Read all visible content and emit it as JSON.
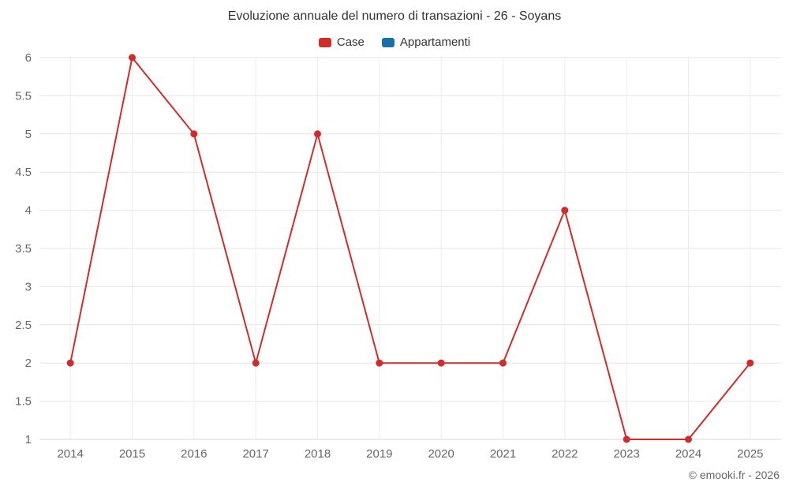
{
  "chart": {
    "title": "Evoluzione annuale del numero di transazioni - 26 - Soyans",
    "credit": "© emooki.fr - 2026"
  },
  "chart_data": {
    "type": "line",
    "title": "Evoluzione annuale del numero di transazioni - 26 - Soyans",
    "categories": [
      "2014",
      "2015",
      "2016",
      "2017",
      "2018",
      "2019",
      "2020",
      "2021",
      "2022",
      "2023",
      "2024",
      "2025"
    ],
    "series": [
      {
        "name": "Case",
        "color": "#d32a2a",
        "values": [
          2,
          6,
          5,
          2,
          5,
          2,
          2,
          2,
          4,
          1,
          1,
          2
        ]
      },
      {
        "name": "Appartamenti",
        "color": "#1b6fa8",
        "values": []
      }
    ],
    "xlabel": "",
    "ylabel": "",
    "ylim": [
      1,
      6
    ],
    "ytick_step": 0.5,
    "grid": true,
    "legend_position": "top",
    "axis_label_color": "#666666",
    "gridline_color": "#e6e6e6",
    "vertical_gridline_color": "#ededed",
    "axis_line_color": "#d8d8d8"
  }
}
